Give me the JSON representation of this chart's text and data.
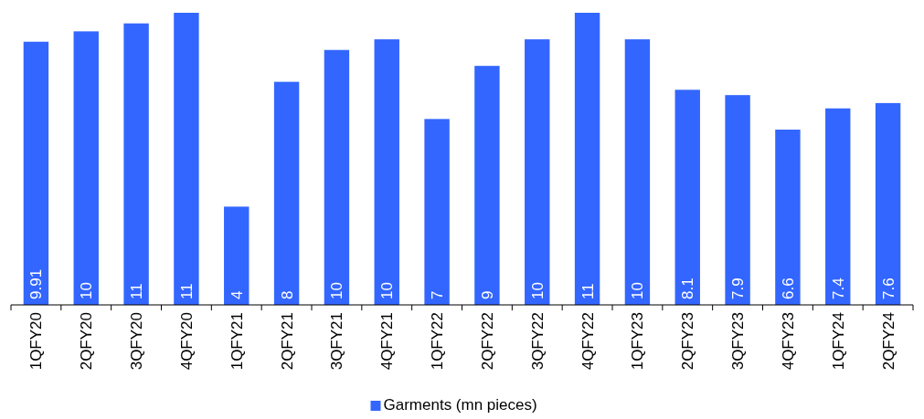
{
  "chart_data": {
    "type": "bar",
    "categories": [
      "1QFY20",
      "2QFY20",
      "3QFY20",
      "4QFY20",
      "1QFY21",
      "2QFY21",
      "3QFY21",
      "4QFY21",
      "1QFY22",
      "2QFY22",
      "3QFY22",
      "4QFY22",
      "1QFY23",
      "2QFY23",
      "3QFY23",
      "4QFY23",
      "1QFY24",
      "2QFY24"
    ],
    "series": [
      {
        "name": "Garments (mn pieces)",
        "color": "#3366ff",
        "values": [
          9.91,
          10.3,
          10.6,
          11.0,
          3.7,
          8.4,
          9.6,
          10.0,
          7.0,
          9.0,
          10.0,
          11.0,
          10.0,
          8.1,
          7.9,
          6.6,
          7.4,
          7.6
        ],
        "value_labels": [
          "9.91",
          "10",
          "11",
          "11",
          "4",
          "8",
          "10",
          "10",
          "7",
          "9",
          "10",
          "11",
          "10",
          "8.1",
          "7.9",
          "6.6",
          "7.4",
          "7.6"
        ]
      }
    ],
    "legend": "bottom"
  }
}
